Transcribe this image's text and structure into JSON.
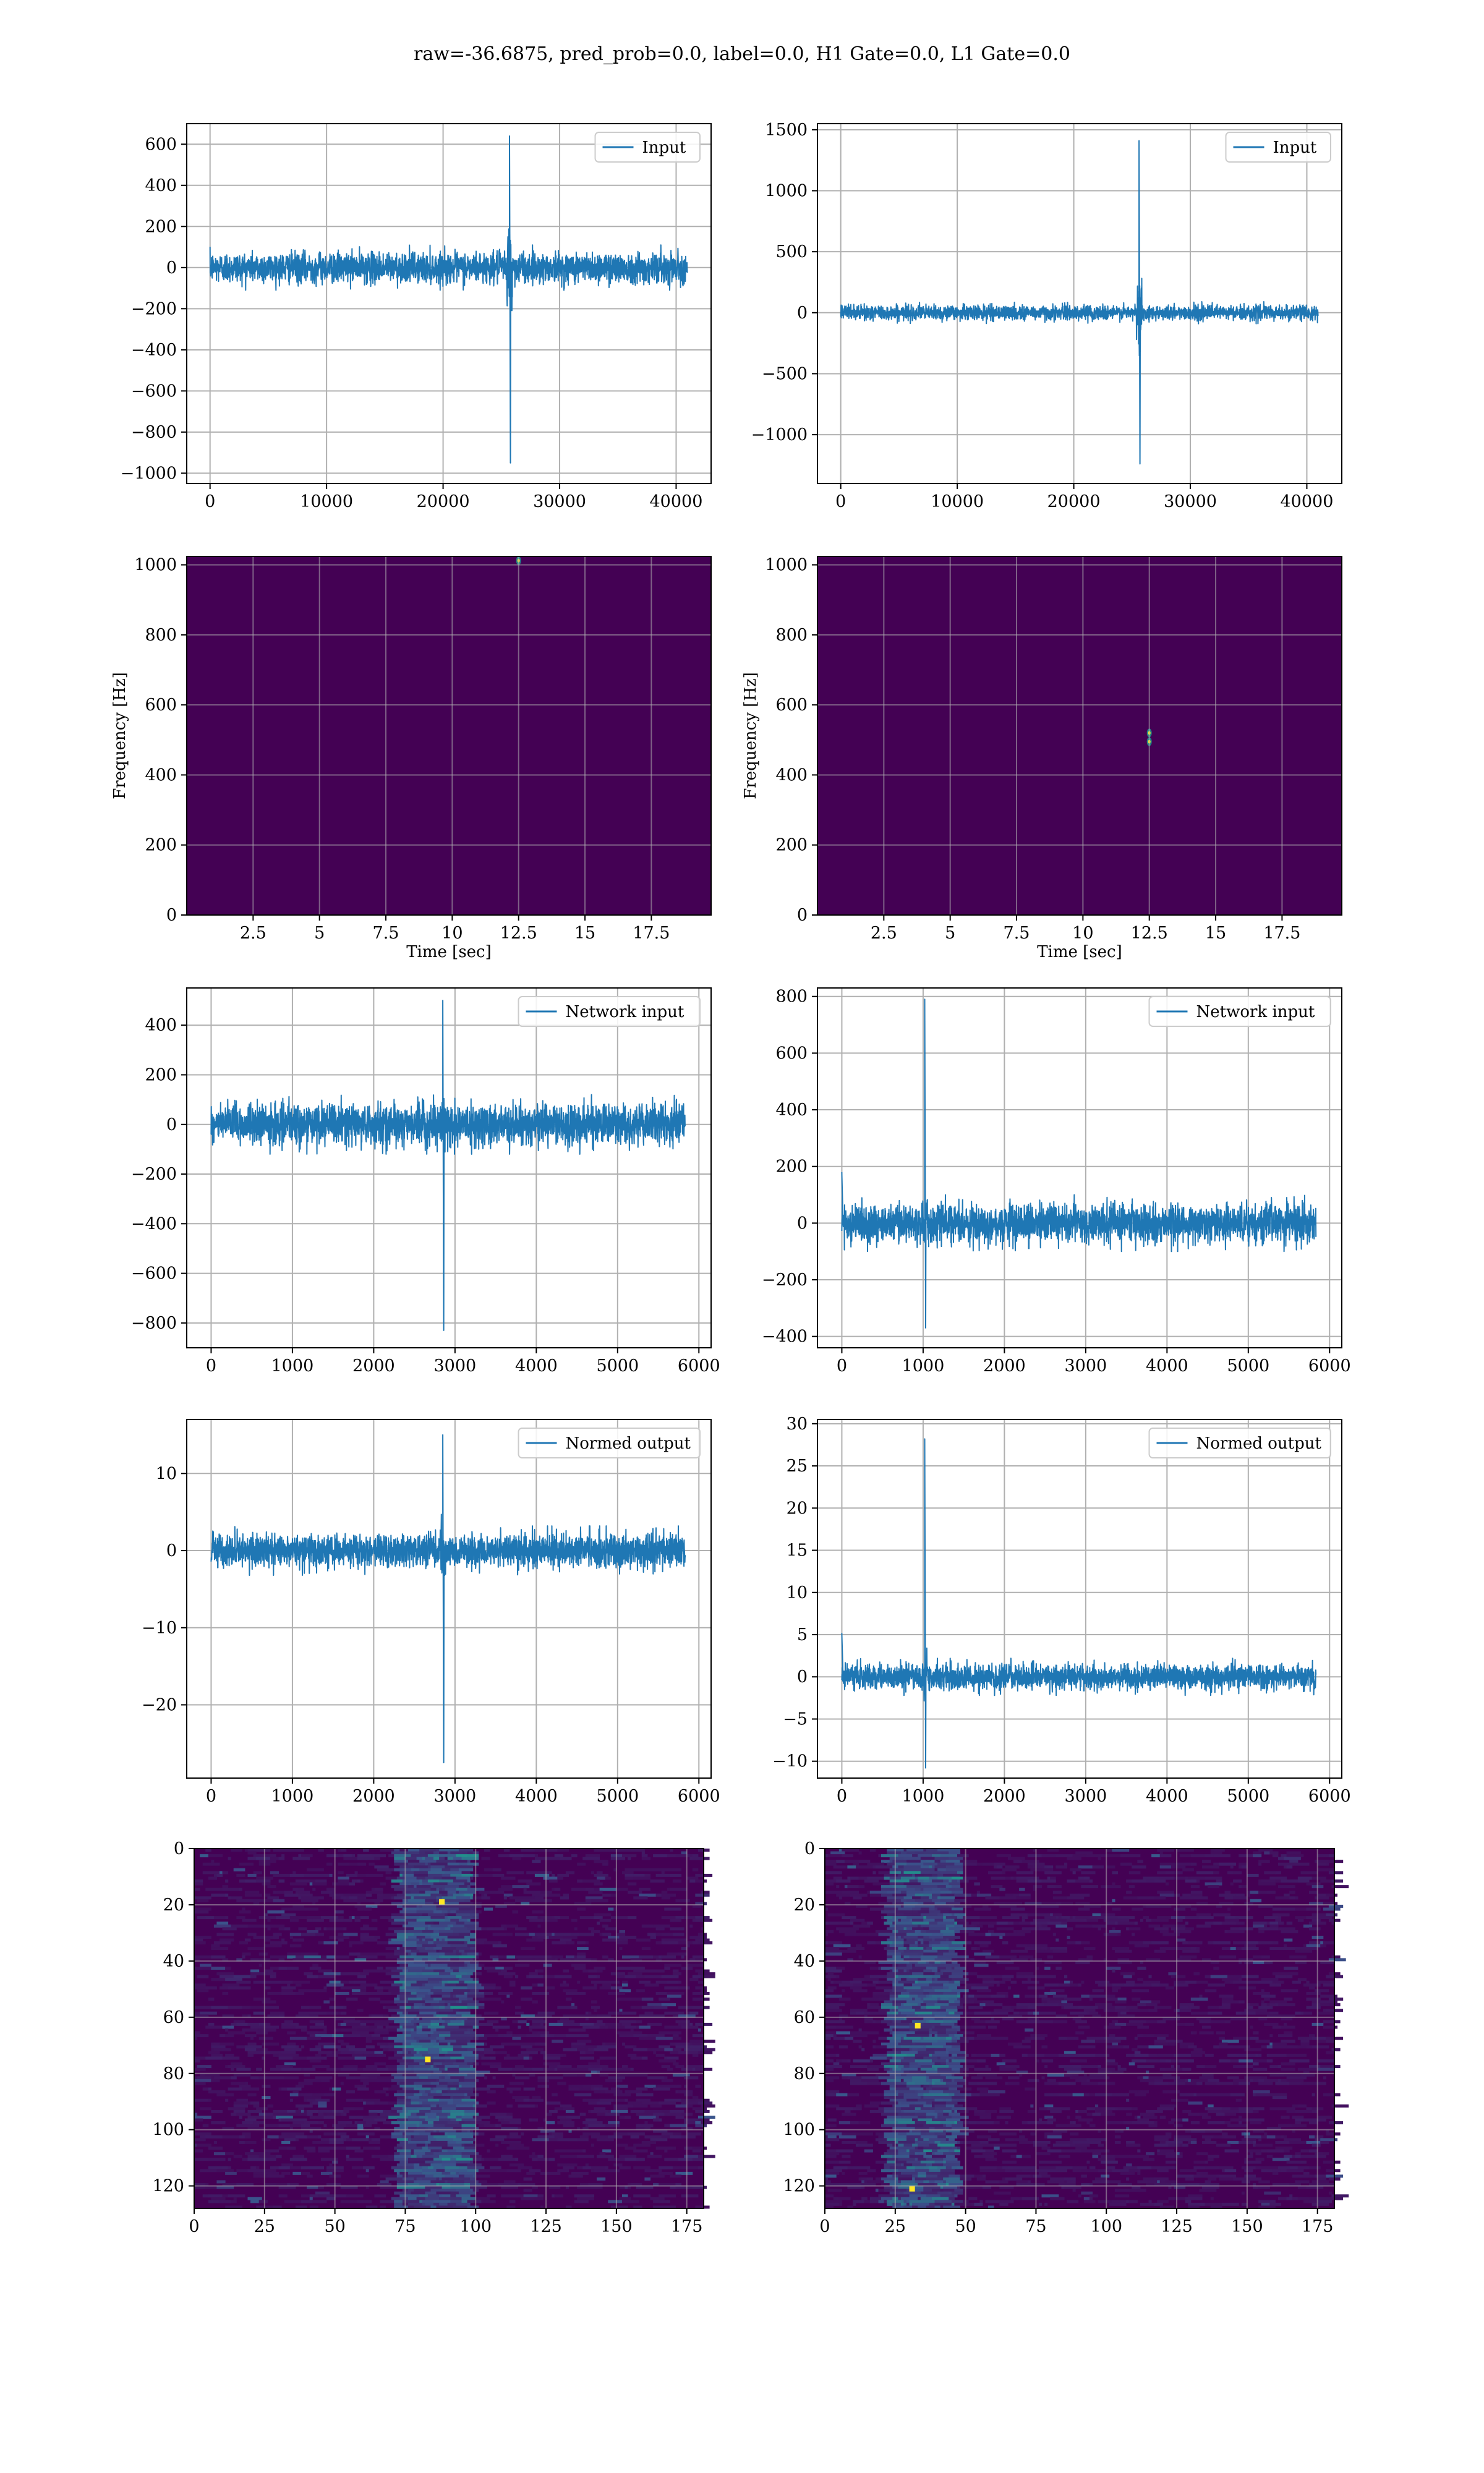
{
  "title": "raw=-36.6875, pred_prob=0.0, label=0.0, H1 Gate=0.0, L1 Gate=0.0",
  "colors": {
    "line": "#1f77b4",
    "grid": "#b0b0b0",
    "viridis_bg": "#440154",
    "viridis_teal": "#21918c",
    "viridis_yellow": "#fde725"
  },
  "chart_data": [
    {
      "id": "h1-input",
      "type": "line",
      "legend": "Input",
      "xlim": [
        -2000,
        43000
      ],
      "ylim": [
        -1050,
        700
      ],
      "xticks": [
        0,
        10000,
        20000,
        30000,
        40000
      ],
      "yticks": [
        -1000,
        -800,
        -600,
        -400,
        -200,
        0,
        200,
        400,
        600
      ],
      "x_range": [
        0,
        40960
      ],
      "noise_amplitude": 110,
      "spike": {
        "x": 25700,
        "max": 640,
        "min": -950,
        "burst_amplitude": 230
      }
    },
    {
      "id": "l1-input",
      "type": "line",
      "legend": "Input",
      "xlim": [
        -2000,
        43000
      ],
      "ylim": [
        -1400,
        1550
      ],
      "xticks": [
        0,
        10000,
        20000,
        30000,
        40000
      ],
      "yticks": [
        -1000,
        -500,
        0,
        500,
        1000,
        1500
      ],
      "x_range": [
        0,
        40960
      ],
      "noise_amplitude": 90,
      "spike": {
        "x": 25600,
        "max": 1410,
        "min": -1240,
        "burst_amplitude": 250
      }
    },
    {
      "id": "h1-spectrogram",
      "type": "heatmap",
      "xlabel": "Time [sec]",
      "ylabel": "Frequency [Hz]",
      "xlim": [
        0,
        19.75
      ],
      "ylim": [
        0,
        1024
      ],
      "xticks": [
        2.5,
        5.0,
        7.5,
        10.0,
        12.5,
        15.0,
        17.5
      ],
      "yticks": [
        0,
        200,
        400,
        600,
        800,
        1000
      ],
      "hotspots": [
        {
          "t": 12.5,
          "f": 1012
        }
      ]
    },
    {
      "id": "l1-spectrogram",
      "type": "heatmap",
      "xlabel": "Time [sec]",
      "ylabel": "Frequency [Hz]",
      "xlim": [
        0,
        19.75
      ],
      "ylim": [
        0,
        1024
      ],
      "xticks": [
        2.5,
        5.0,
        7.5,
        10.0,
        12.5,
        15.0,
        17.5
      ],
      "yticks": [
        0,
        200,
        400,
        600,
        800,
        1000
      ],
      "hotspots": [
        {
          "t": 12.5,
          "f": 520
        },
        {
          "t": 12.5,
          "f": 495
        }
      ]
    },
    {
      "id": "h1-network-input",
      "type": "line",
      "legend": "Network input",
      "xlim": [
        -300,
        6150
      ],
      "ylim": [
        -900,
        550
      ],
      "xticks": [
        0,
        1000,
        2000,
        3000,
        4000,
        5000,
        6000
      ],
      "yticks": [
        -800,
        -600,
        -400,
        -200,
        0,
        200,
        400
      ],
      "x_range": [
        0,
        5832
      ],
      "noise_amplitude": 120,
      "spike": {
        "x": 2850,
        "max": 500,
        "min": -830,
        "burst_amplitude": 80
      }
    },
    {
      "id": "l1-network-input",
      "type": "line",
      "legend": "Network input",
      "xlim": [
        -300,
        6150
      ],
      "ylim": [
        -440,
        830
      ],
      "xticks": [
        0,
        1000,
        2000,
        3000,
        4000,
        5000,
        6000
      ],
      "yticks": [
        -400,
        -200,
        0,
        200,
        400,
        600,
        800
      ],
      "x_range": [
        0,
        5832
      ],
      "noise_amplitude": 100,
      "spike": {
        "x": 1020,
        "max": 790,
        "min": -370,
        "burst_amplitude": 60
      },
      "edge_spike": {
        "x": 0,
        "max": 180
      }
    },
    {
      "id": "h1-normed-output",
      "type": "line",
      "legend": "Normed output",
      "xlim": [
        -300,
        6150
      ],
      "ylim": [
        -29.5,
        17
      ],
      "xticks": [
        0,
        1000,
        2000,
        3000,
        4000,
        5000,
        6000
      ],
      "yticks": [
        -20,
        -10,
        0,
        10
      ],
      "x_range": [
        0,
        5832
      ],
      "noise_amplitude": 3.2,
      "spike": {
        "x": 2850,
        "max": 15,
        "min": -27.5,
        "burst_amplitude": 3
      }
    },
    {
      "id": "l1-normed-output",
      "type": "line",
      "legend": "Normed output",
      "xlim": [
        -300,
        6150
      ],
      "ylim": [
        -12,
        30.5
      ],
      "xticks": [
        0,
        1000,
        2000,
        3000,
        4000,
        5000,
        6000
      ],
      "yticks": [
        -10,
        -5,
        0,
        5,
        10,
        15,
        20,
        25,
        30
      ],
      "x_range": [
        0,
        5832
      ],
      "noise_amplitude": 2.2,
      "spike": {
        "x": 1020,
        "max": 28.2,
        "min": -10.8,
        "burst_amplitude": 2.5
      },
      "edge_spike": {
        "x": 0,
        "max": 5.2
      }
    },
    {
      "id": "h1-feature-map",
      "type": "heatmap",
      "xlim": [
        0,
        181
      ],
      "ylim": [
        128,
        0
      ],
      "xticks": [
        0,
        25,
        50,
        75,
        100,
        125,
        150,
        175
      ],
      "yticks": [
        0,
        20,
        40,
        60,
        80,
        100,
        120
      ],
      "active_band": [
        72,
        100
      ],
      "peak_cells": [
        {
          "x": 82,
          "y": 74
        },
        {
          "x": 87,
          "y": 18
        }
      ]
    },
    {
      "id": "l1-feature-map",
      "type": "heatmap",
      "xlim": [
        0,
        181
      ],
      "ylim": [
        128,
        0
      ],
      "xticks": [
        0,
        25,
        50,
        75,
        100,
        125,
        150,
        175
      ],
      "yticks": [
        0,
        20,
        40,
        60,
        80,
        100,
        120
      ],
      "active_band": [
        22,
        48
      ],
      "peak_cells": [
        {
          "x": 32,
          "y": 62
        },
        {
          "x": 30,
          "y": 120
        }
      ]
    }
  ]
}
